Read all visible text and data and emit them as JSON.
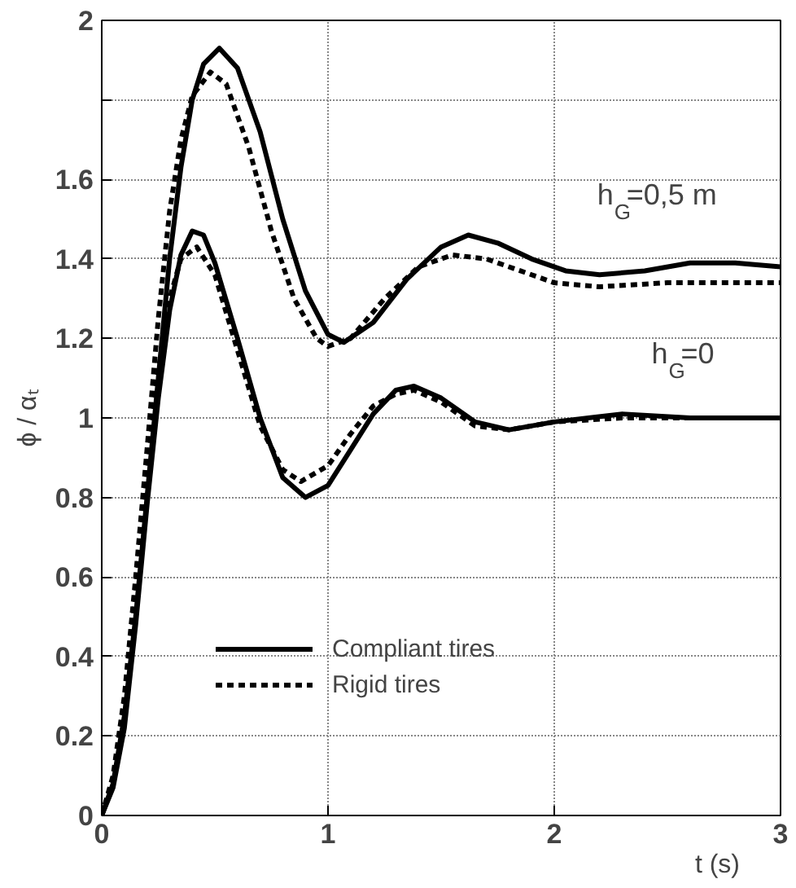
{
  "chart_data": {
    "type": "line",
    "xlabel": "t (s)",
    "ylabel": "ϕ / αₜ",
    "xlim": [
      0,
      3
    ],
    "ylim": [
      0,
      2
    ],
    "xticks": [
      0,
      1,
      2,
      3
    ],
    "yticks": [
      0,
      0.2,
      0.4,
      0.6,
      0.8,
      1,
      1.2,
      1.4,
      1.6,
      {
        "value": 1.8,
        "label": null
      },
      2
    ],
    "grid": true,
    "legend": "bottom left",
    "series": [
      {
        "name": "Compliant tires",
        "color": "#000000",
        "line_style": "solid",
        "x": [
          0,
          0.05,
          0.1,
          0.15,
          0.2,
          0.25,
          0.3,
          0.35,
          0.4,
          0.45,
          0.52,
          0.6,
          0.7,
          0.8,
          0.9,
          1.0,
          1.07,
          1.2,
          1.35,
          1.5,
          1.62,
          1.75,
          1.9,
          2.05,
          2.2,
          2.4,
          2.6,
          2.8,
          3
        ],
        "values": [
          0,
          0.08,
          0.25,
          0.5,
          0.8,
          1.1,
          1.4,
          1.63,
          1.8,
          1.89,
          1.93,
          1.88,
          1.72,
          1.5,
          1.32,
          1.21,
          1.19,
          1.24,
          1.35,
          1.43,
          1.46,
          1.44,
          1.4,
          1.37,
          1.36,
          1.37,
          1.39,
          1.39,
          1.38
        ]
      },
      {
        "name": "Rigid tires",
        "color": "#000000",
        "line_style": "dashed",
        "x": [
          0,
          0.05,
          0.1,
          0.15,
          0.2,
          0.25,
          0.3,
          0.35,
          0.4,
          0.48,
          0.55,
          0.65,
          0.75,
          0.85,
          0.95,
          1.0,
          1.1,
          1.25,
          1.4,
          1.55,
          1.7,
          1.85,
          2.0,
          2.2,
          2.5,
          2.8,
          3
        ],
        "values": [
          0,
          0.1,
          0.3,
          0.6,
          0.92,
          1.25,
          1.52,
          1.7,
          1.81,
          1.87,
          1.84,
          1.68,
          1.47,
          1.3,
          1.2,
          1.18,
          1.2,
          1.3,
          1.38,
          1.41,
          1.4,
          1.37,
          1.34,
          1.33,
          1.34,
          1.34,
          1.34
        ]
      },
      {
        "color": "#000000",
        "line_style": "solid",
        "x": [
          0,
          0.05,
          0.1,
          0.15,
          0.2,
          0.25,
          0.3,
          0.35,
          0.4,
          0.45,
          0.5,
          0.6,
          0.7,
          0.8,
          0.9,
          1.0,
          1.1,
          1.2,
          1.3,
          1.38,
          1.5,
          1.65,
          1.8,
          2.0,
          2.3,
          2.6,
          3
        ],
        "values": [
          0,
          0.07,
          0.22,
          0.48,
          0.78,
          1.05,
          1.27,
          1.41,
          1.47,
          1.46,
          1.39,
          1.2,
          1.0,
          0.85,
          0.8,
          0.83,
          0.92,
          1.01,
          1.07,
          1.08,
          1.05,
          0.99,
          0.97,
          0.99,
          1.01,
          1.0,
          1.0
        ]
      },
      {
        "color": "#000000",
        "line_style": "dashed",
        "x": [
          0,
          0.05,
          0.1,
          0.15,
          0.2,
          0.25,
          0.3,
          0.35,
          0.42,
          0.5,
          0.6,
          0.7,
          0.8,
          0.88,
          1.0,
          1.1,
          1.2,
          1.3,
          1.38,
          1.5,
          1.65,
          1.8,
          2.0,
          2.3,
          2.6,
          3
        ],
        "values": [
          0,
          0.09,
          0.28,
          0.56,
          0.86,
          1.12,
          1.3,
          1.4,
          1.43,
          1.36,
          1.17,
          0.98,
          0.87,
          0.84,
          0.88,
          0.96,
          1.03,
          1.06,
          1.07,
          1.04,
          0.98,
          0.97,
          0.99,
          1.0,
          1.0,
          1.0
        ]
      }
    ],
    "annotations": [
      "h$_{G}$=0,5 m",
      "h$_{G}$=0"
    ]
  }
}
